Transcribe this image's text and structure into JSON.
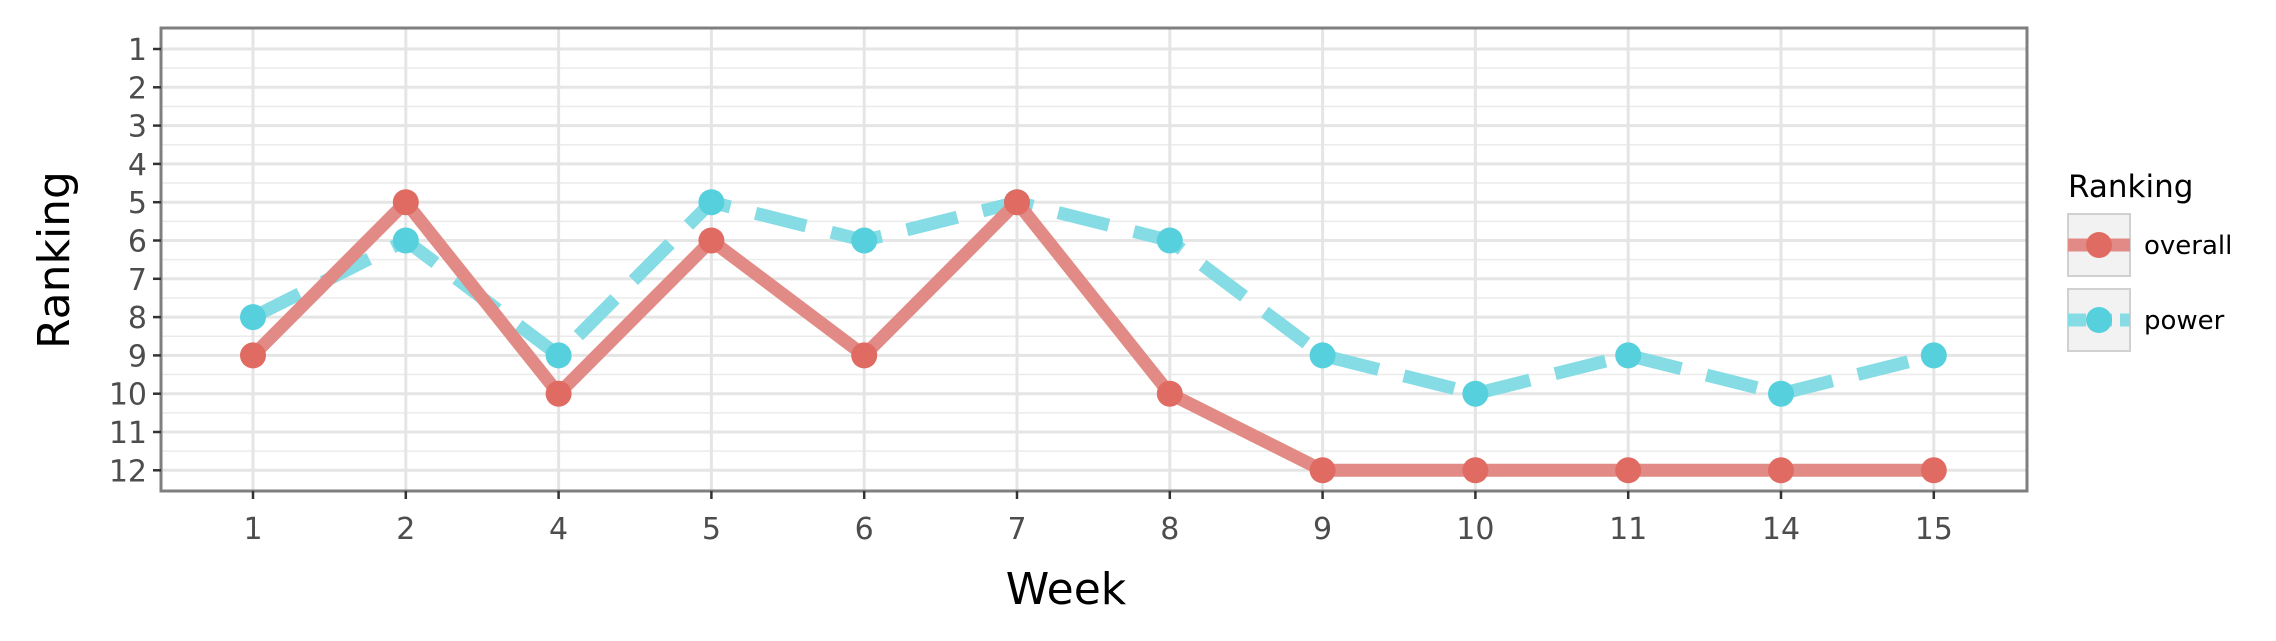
{
  "chart_data": {
    "type": "line",
    "xlabel": "Week",
    "ylabel": "Ranking",
    "categories": [
      "1",
      "2",
      "4",
      "5",
      "6",
      "7",
      "8",
      "9",
      "10",
      "11",
      "14",
      "15"
    ],
    "y_ticks": [
      "1",
      "2",
      "3",
      "4",
      "5",
      "6",
      "7",
      "8",
      "9",
      "10",
      "11",
      "12"
    ],
    "ylim": [
      1,
      12
    ],
    "y_reversed": true,
    "grid": true,
    "legend": {
      "title": "Ranking",
      "placement": "right"
    },
    "series": [
      {
        "name": "overall",
        "color": "#e06b63",
        "line_color": "#e28a85",
        "dash": "solid",
        "values": [
          9,
          5,
          10,
          6,
          9,
          5,
          10,
          12,
          12,
          12,
          12,
          12
        ]
      },
      {
        "name": "power",
        "color": "#56d0dc",
        "line_color": "#86dce4",
        "dash": "dashed",
        "values": [
          8,
          6,
          9,
          5,
          6,
          5,
          6,
          9,
          10,
          9,
          10,
          9
        ]
      }
    ]
  }
}
